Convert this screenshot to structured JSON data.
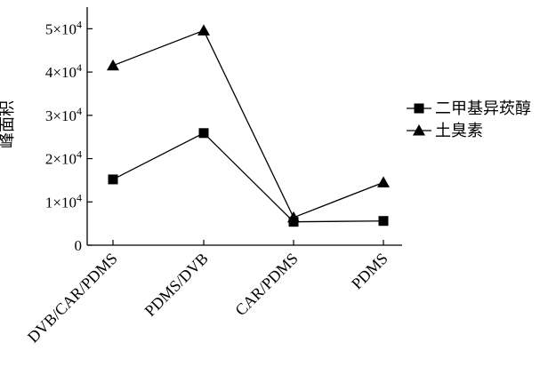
{
  "chart_data": {
    "type": "line",
    "title": "",
    "xlabel": "",
    "ylabel": "峰面积",
    "categories": [
      "DVB/CAR/PDMS",
      "PDMS/DVB",
      "CAR/PDMS",
      "PDMS"
    ],
    "ylim": [
      0,
      55000
    ],
    "y_ticks": [
      {
        "value": 0,
        "label": "0",
        "exp": ""
      },
      {
        "value": 10000,
        "label": "1×10",
        "exp": "4"
      },
      {
        "value": 20000,
        "label": "2×10",
        "exp": "4"
      },
      {
        "value": 30000,
        "label": "3×10",
        "exp": "4"
      },
      {
        "value": 40000,
        "label": "4×10",
        "exp": "4"
      },
      {
        "value": 50000,
        "label": "5×10",
        "exp": "4"
      }
    ],
    "series": [
      {
        "name": "二甲基异莰醇",
        "marker": "square",
        "values": [
          15200,
          25900,
          5400,
          5600
        ]
      },
      {
        "name": "土臭素",
        "marker": "triangle",
        "values": [
          41500,
          49600,
          6400,
          14500
        ]
      }
    ],
    "legend": "right",
    "grid": false,
    "colors": {
      "line": "#000000",
      "background": "#ffffff"
    }
  }
}
